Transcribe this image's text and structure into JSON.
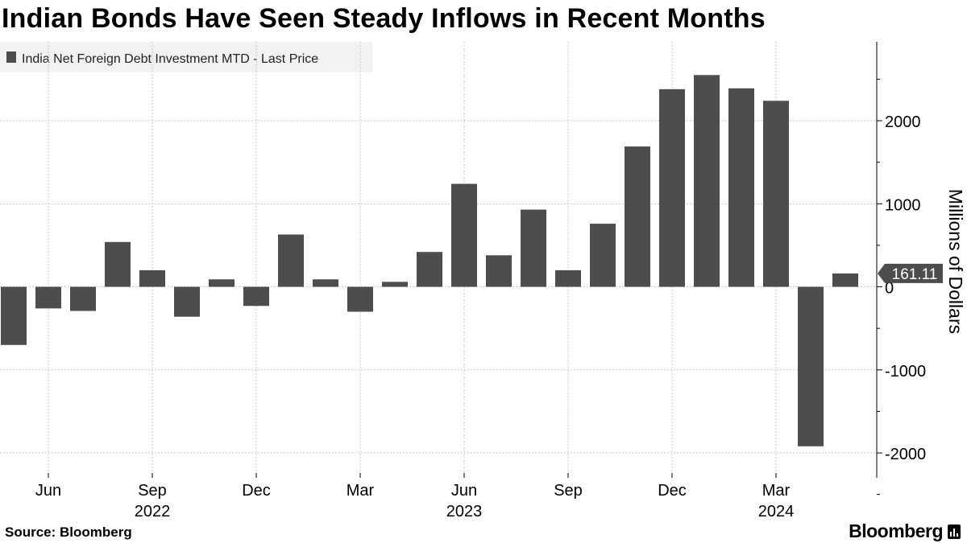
{
  "title": "Indian Bonds Have Seen Steady Inflows in Recent Months",
  "source": "Source: Bloomberg",
  "brand": "Bloomberg",
  "brand_icon": "bloomberg-chart-icon",
  "chart_data": {
    "type": "bar",
    "legend": [
      "India Net Foreign Debt Investment MTD - Last Price"
    ],
    "legend_placement": "top-left",
    "ylabel": "Millions of Dollars",
    "ylim": [
      -2300,
      2950
    ],
    "yticks": [
      -2000,
      -1000,
      0,
      1000,
      2000
    ],
    "ytick_labels": [
      "-2000",
      "-1000",
      "0",
      "1000",
      "2000"
    ],
    "y_axis_side": "right",
    "grid": true,
    "last_value_label": "161.11",
    "bar_color": "#4d4d4d",
    "x": [
      "2022-05",
      "2022-06",
      "2022-07",
      "2022-08",
      "2022-09",
      "2022-10",
      "2022-11",
      "2022-12",
      "2023-01",
      "2023-02",
      "2023-03",
      "2023-04",
      "2023-05",
      "2023-06",
      "2023-07",
      "2023-08",
      "2023-09",
      "2023-10",
      "2023-11",
      "2023-12",
      "2024-01",
      "2024-02",
      "2024-03",
      "2024-04",
      "2024-05"
    ],
    "series": [
      {
        "name": "India Net Foreign Debt Investment MTD - Last Price",
        "values": [
          -700,
          -260,
          -290,
          540,
          200,
          -360,
          90,
          -230,
          630,
          90,
          -300,
          60,
          420,
          1240,
          380,
          930,
          200,
          760,
          1690,
          2380,
          2550,
          2390,
          2240,
          -1920,
          161.11
        ]
      }
    ],
    "xtick_labels": [
      {
        "x": "2022-06",
        "month": "Jun",
        "year": ""
      },
      {
        "x": "2022-09",
        "month": "Sep",
        "year": "2022"
      },
      {
        "x": "2022-12",
        "month": "Dec",
        "year": ""
      },
      {
        "x": "2023-03",
        "month": "Mar",
        "year": ""
      },
      {
        "x": "2023-06",
        "month": "Jun",
        "year": "2023"
      },
      {
        "x": "2023-09",
        "month": "Sep",
        "year": ""
      },
      {
        "x": "2023-12",
        "month": "Dec",
        "year": ""
      },
      {
        "x": "2024-03",
        "month": "Mar",
        "year": "2024"
      }
    ]
  }
}
